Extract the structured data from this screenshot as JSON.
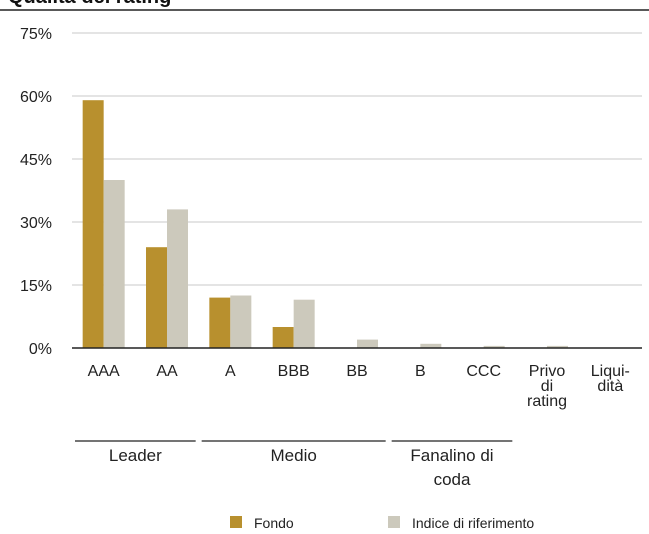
{
  "chart_data": {
    "type": "bar",
    "title": "Qualità del rating",
    "categories": [
      "AAA",
      "AA",
      "A",
      "BBB",
      "BB",
      "B",
      "CCC",
      "Privo di rating",
      "Liquidità"
    ],
    "category_label_lines": [
      [
        "AAA"
      ],
      [
        "AA"
      ],
      [
        "A"
      ],
      [
        "BBB"
      ],
      [
        "BB"
      ],
      [
        "B"
      ],
      [
        "CCC"
      ],
      [
        "Privo",
        "di",
        "rating"
      ],
      [
        "Liqui-",
        "dità"
      ]
    ],
    "series": [
      {
        "name": "Fondo",
        "values": [
          59,
          24,
          12,
          5,
          0,
          0,
          0,
          0,
          0
        ]
      },
      {
        "name": "Indice di riferimento",
        "values": [
          40,
          33,
          12.5,
          11.5,
          2,
          1,
          0.5,
          0.5,
          0
        ]
      }
    ],
    "ylim": [
      0,
      75
    ],
    "yticks": [
      "0%",
      "15%",
      "30%",
      "45%",
      "60%",
      "75%"
    ],
    "ytick_values": [
      0,
      15,
      30,
      45,
      60,
      75
    ],
    "groups": [
      {
        "label_lines": [
          "Leader"
        ],
        "first": 0,
        "last": 1
      },
      {
        "label_lines": [
          "Medio"
        ],
        "first": 2,
        "last": 4
      },
      {
        "label_lines": [
          "Fanalino di",
          "coda"
        ],
        "first": 5,
        "last": 6
      }
    ],
    "legend_position": "bottom",
    "grid": true,
    "colors": {
      "fund": "#b8902e",
      "benchmark": "#ccc9bc",
      "grid": "#c8c8c8",
      "axis": "#222222"
    }
  }
}
